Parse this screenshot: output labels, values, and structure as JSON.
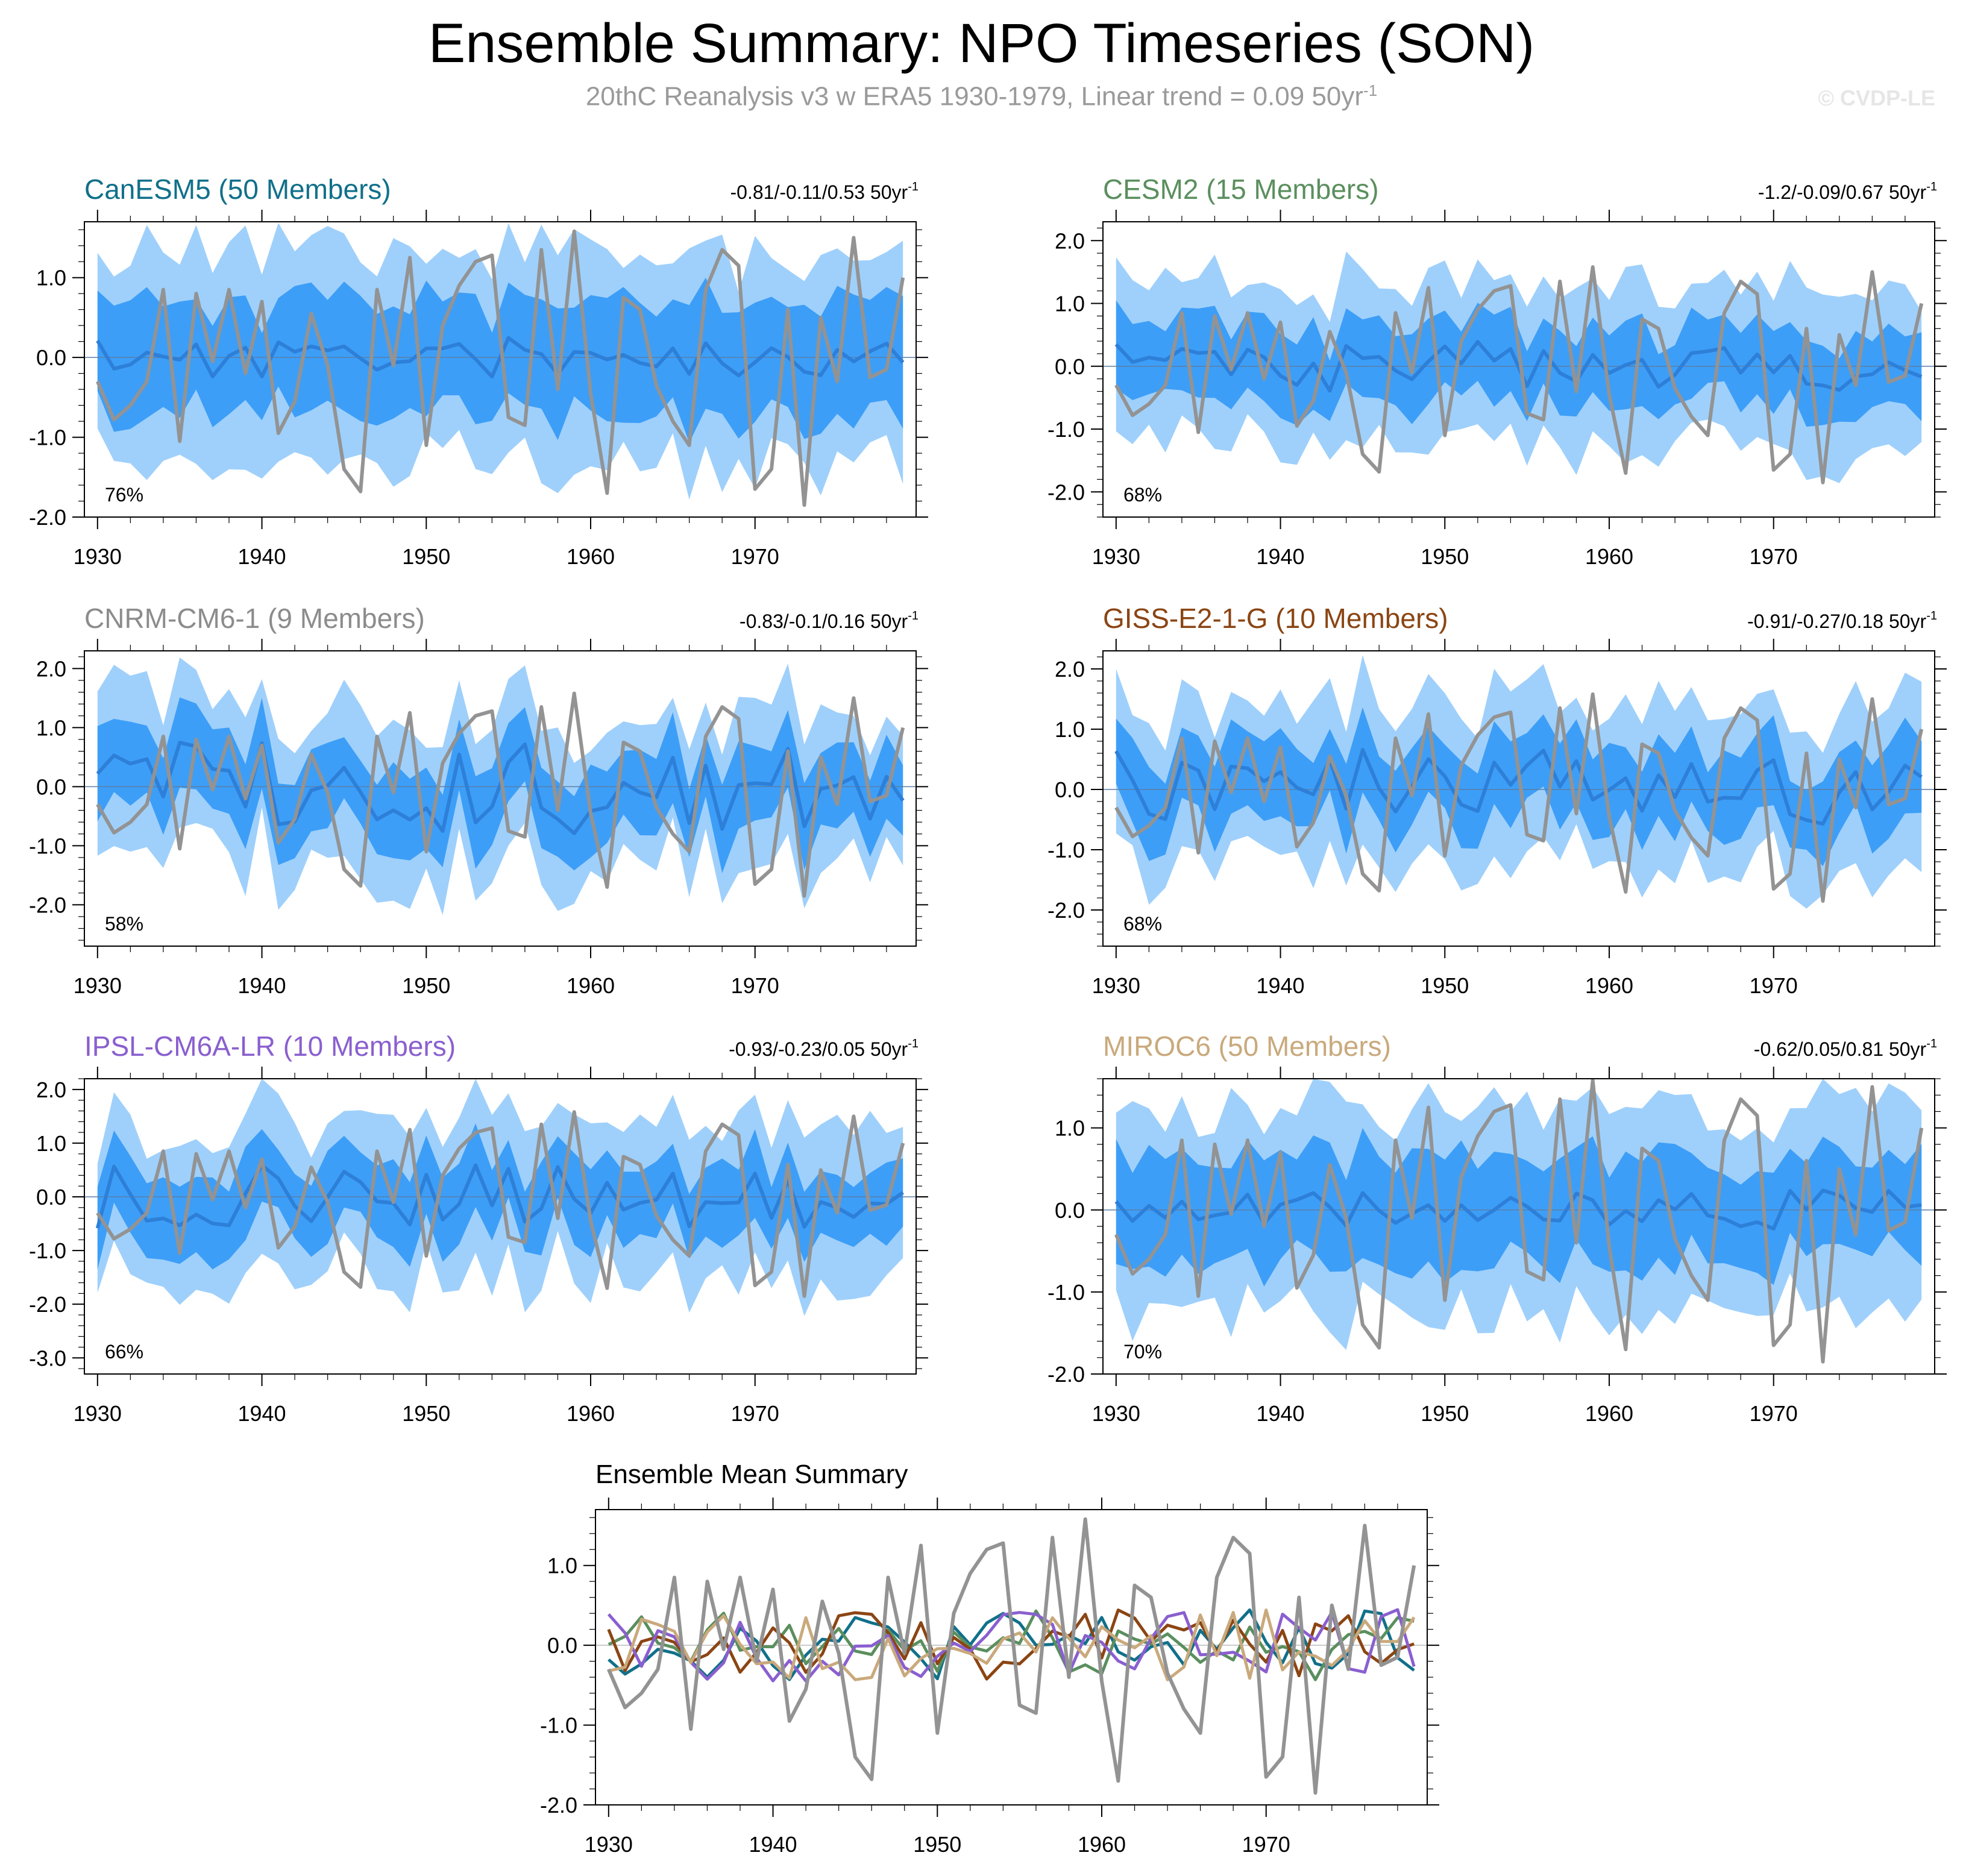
{
  "page": {
    "title": "Ensemble Summary: NPO Timeseries (SON)",
    "subtitle_main": "20thC Reanalysis v3 w ERA5 1930-1979, Linear trend = 0.09 50yr",
    "subtitle_sup": "-1",
    "watermark": "© CVDP-LE"
  },
  "colors": {
    "band_outer": "#9fd0fb",
    "band_inner": "#3d9ef7",
    "ensemble_mean": "#2d7fd8",
    "observations": "#939393"
  },
  "chart_data": [
    {
      "type": "line",
      "name": "CanESM5 (50 Members)",
      "title_color": "#11708a",
      "trend_label": "-0.81/-0.11/0.53 50yr",
      "trend_sup": "-1",
      "percent_label": "76%",
      "ylim": [
        -2.0,
        1.7
      ],
      "yticks": [
        -2.0,
        -1.0,
        0.0,
        1.0
      ],
      "ytick_labels": [
        "-2.0",
        "-1.0",
        "0.0",
        "1.0"
      ],
      "xlim": [
        1929.2,
        1979.8
      ],
      "xticks": [
        1930,
        1940,
        1950,
        1960,
        1970
      ],
      "xtick_labels": [
        "1930",
        "1940",
        "1950",
        "1960",
        "1970"
      ],
      "seed": 11,
      "inner_halfwidth": 0.7,
      "outer_halfwidth": 1.3,
      "mean_amplitude": 0.13
    },
    {
      "type": "line",
      "name": "CESM2 (15 Members)",
      "title_color": "#5a8f5e",
      "trend_label": "-1.2/-0.09/0.67 50yr",
      "trend_sup": "-1",
      "percent_label": "68%",
      "ylim": [
        -2.4,
        2.3
      ],
      "yticks": [
        -2.0,
        -1.0,
        0.0,
        1.0,
        2.0
      ],
      "ytick_labels": [
        "-2.0",
        "-1.0",
        "0.0",
        "1.0",
        "2.0"
      ],
      "xlim": [
        1929.2,
        1979.8
      ],
      "xticks": [
        1930,
        1940,
        1950,
        1960,
        1970
      ],
      "xtick_labels": [
        "1930",
        "1940",
        "1950",
        "1960",
        "1970"
      ],
      "seed": 23,
      "inner_halfwidth": 0.6,
      "outer_halfwidth": 1.25,
      "mean_amplitude": 0.2
    },
    {
      "type": "line",
      "name": "CNRM-CM6-1 (9 Members)",
      "title_color": "#8c8c8c",
      "trend_label": "-0.83/-0.1/0.16 50yr",
      "trend_sup": "-1",
      "percent_label": "58%",
      "ylim": [
        -2.7,
        2.3
      ],
      "yticks": [
        -2.0,
        -1.0,
        0.0,
        1.0,
        2.0
      ],
      "ytick_labels": [
        "-2.0",
        "-1.0",
        "0.0",
        "1.0",
        "2.0"
      ],
      "xlim": [
        1929.2,
        1979.8
      ],
      "xticks": [
        1930,
        1940,
        1950,
        1960,
        1970
      ],
      "xtick_labels": [
        "1930",
        "1940",
        "1950",
        "1960",
        "1970"
      ],
      "seed": 37,
      "inner_halfwidth": 0.65,
      "outer_halfwidth": 1.25,
      "mean_amplitude": 0.4
    },
    {
      "type": "line",
      "name": "GISS-E2-1-G (10 Members)",
      "title_color": "#8b4513",
      "trend_label": "-0.91/-0.27/0.18 50yr",
      "trend_sup": "-1",
      "percent_label": "68%",
      "ylim": [
        -2.6,
        2.3
      ],
      "yticks": [
        -2.0,
        -1.0,
        0.0,
        1.0,
        2.0
      ],
      "ytick_labels": [
        "-2.0",
        "-1.0",
        "0.0",
        "1.0",
        "2.0"
      ],
      "xlim": [
        1929.2,
        1979.8
      ],
      "xticks": [
        1930,
        1940,
        1950,
        1960,
        1970
      ],
      "xtick_labels": [
        "1930",
        "1940",
        "1950",
        "1960",
        "1970"
      ],
      "seed": 41,
      "inner_halfwidth": 0.65,
      "outer_halfwidth": 1.3,
      "mean_amplitude": 0.33
    },
    {
      "type": "line",
      "name": "IPSL-CM6A-LR (10 Members)",
      "title_color": "#8a5fcf",
      "trend_label": "-0.93/-0.23/0.05 50yr",
      "trend_sup": "-1",
      "percent_label": "66%",
      "ylim": [
        -3.3,
        2.2
      ],
      "yticks": [
        -3.0,
        -2.0,
        -1.0,
        0.0,
        1.0,
        2.0
      ],
      "ytick_labels": [
        "-3.0",
        "-2.0",
        "-1.0",
        "0.0",
        "1.0",
        "2.0"
      ],
      "xlim": [
        1929.2,
        1979.8
      ],
      "xticks": [
        1930,
        1940,
        1950,
        1960,
        1970
      ],
      "xtick_labels": [
        "1930",
        "1940",
        "1950",
        "1960",
        "1970"
      ],
      "seed": 53,
      "inner_halfwidth": 0.7,
      "outer_halfwidth": 1.4,
      "mean_amplitude": 0.3
    },
    {
      "type": "line",
      "name": "MIROC6 (50 Members)",
      "title_color": "#c9a97c",
      "trend_label": "-0.62/0.05/0.81 50yr",
      "trend_sup": "-1",
      "percent_label": "70%",
      "ylim": [
        -2.0,
        1.6
      ],
      "yticks": [
        -2.0,
        -1.0,
        0.0,
        1.0
      ],
      "ytick_labels": [
        "-2.0",
        "-1.0",
        "0.0",
        "1.0"
      ],
      "xlim": [
        1929.2,
        1979.8
      ],
      "xticks": [
        1930,
        1940,
        1950,
        1960,
        1970
      ],
      "xtick_labels": [
        "1930",
        "1940",
        "1950",
        "1960",
        "1970"
      ],
      "seed": 67,
      "inner_halfwidth": 0.65,
      "outer_halfwidth": 1.25,
      "mean_amplitude": 0.12
    },
    {
      "type": "line",
      "name": "Ensemble Mean Summary",
      "title_color": "#000000",
      "trend_label": "",
      "trend_sup": "",
      "percent_label": "",
      "ylim": [
        -2.0,
        1.7
      ],
      "yticks": [
        -2.0,
        -1.0,
        0.0,
        1.0
      ],
      "ytick_labels": [
        "-2.0",
        "-1.0",
        "0.0",
        "1.0"
      ],
      "xlim": [
        1929.2,
        1979.8
      ],
      "xticks": [
        1930,
        1940,
        1950,
        1960,
        1970
      ],
      "xtick_labels": [
        "1930",
        "1940",
        "1950",
        "1960",
        "1970"
      ],
      "summary_series_colors": [
        "#11708a",
        "#5a8f5e",
        "#8b4513",
        "#8a5fcf",
        "#c9a97c"
      ]
    }
  ],
  "observations": {
    "name": "20thC Reanalysis v3 w ERA5",
    "x": [
      1930,
      1931,
      1932,
      1933,
      1934,
      1935,
      1936,
      1937,
      1938,
      1939,
      1940,
      1941,
      1942,
      1943,
      1944,
      1945,
      1946,
      1947,
      1948,
      1949,
      1950,
      1951,
      1952,
      1953,
      1954,
      1955,
      1956,
      1957,
      1958,
      1959,
      1960,
      1961,
      1962,
      1963,
      1964,
      1965,
      1966,
      1967,
      1968,
      1969,
      1970,
      1971,
      1972,
      1973,
      1974,
      1975,
      1976,
      1977,
      1978,
      1979
    ],
    "values": [
      -0.3,
      -0.78,
      -0.6,
      -0.3,
      0.85,
      -1.05,
      0.8,
      -0.05,
      0.85,
      -0.2,
      0.7,
      -0.95,
      -0.55,
      0.55,
      -0.1,
      -1.4,
      -1.68,
      0.85,
      -0.1,
      1.25,
      -1.1,
      0.4,
      0.9,
      1.2,
      1.28,
      -0.75,
      -0.85,
      1.35,
      -0.4,
      1.58,
      -0.45,
      -1.7,
      0.75,
      0.6,
      -0.35,
      -0.8,
      -1.1,
      0.85,
      1.35,
      1.15,
      -1.65,
      -1.4,
      0.6,
      -1.85,
      0.5,
      -0.3,
      1.5,
      -0.25,
      -0.15,
      1.0
    ]
  }
}
